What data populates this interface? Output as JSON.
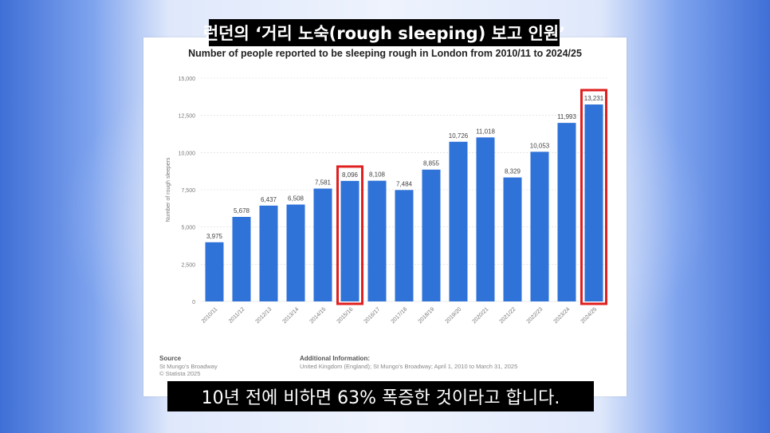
{
  "captions": {
    "top": "런던의 ‘거리 노숙(rough sleeping) 보고 인원’",
    "bottom": "10년 전에 비하면 63% 폭증한 것이라고 합니다."
  },
  "footer": {
    "source_heading": "Source",
    "source_line1": "St Mungo's Broadway",
    "source_line2": "© Statista 2025",
    "info_heading": "Additional Information:",
    "info_line1": "United Kingdom (England); St Mungo's Broadway; April 1, 2010 to March 31, 2025"
  },
  "colors": {
    "bar": "#2f72d8",
    "highlight": "#e02020",
    "grid": "#d8d8d8"
  },
  "chart_data": {
    "type": "bar",
    "title": "Number of people reported to be sleeping rough in London from 2010/11 to 2024/25",
    "xlabel": "",
    "ylabel": "Number of rough sleepers",
    "ylim": [
      0,
      15000
    ],
    "yticks": [
      0,
      2500,
      5000,
      7500,
      10000,
      12500,
      15000
    ],
    "ytick_labels": [
      "0",
      "2,500",
      "5,000",
      "7,500",
      "10,000",
      "12,500",
      "15,000"
    ],
    "categories": [
      "2010/11",
      "2011/12",
      "2012/13",
      "2013/14",
      "2014/15",
      "2015/16",
      "2016/17",
      "2017/18",
      "2018/19",
      "2019/20",
      "2020/21",
      "2021/22",
      "2022/23",
      "2023/24",
      "2024/25"
    ],
    "values": [
      3975,
      5678,
      6437,
      6508,
      7581,
      8096,
      8108,
      7484,
      8855,
      10726,
      11018,
      8329,
      10053,
      11993,
      13231
    ],
    "value_labels": [
      "3,975",
      "5,678",
      "6,437",
      "6,508",
      "7,581",
      "8,096",
      "8,108",
      "7,484",
      "8,855",
      "10,726",
      "11,018",
      "8,329",
      "10,053",
      "11,993",
      "13,231"
    ],
    "highlighted": [
      "2015/16",
      "2024/25"
    ],
    "grid": true
  }
}
